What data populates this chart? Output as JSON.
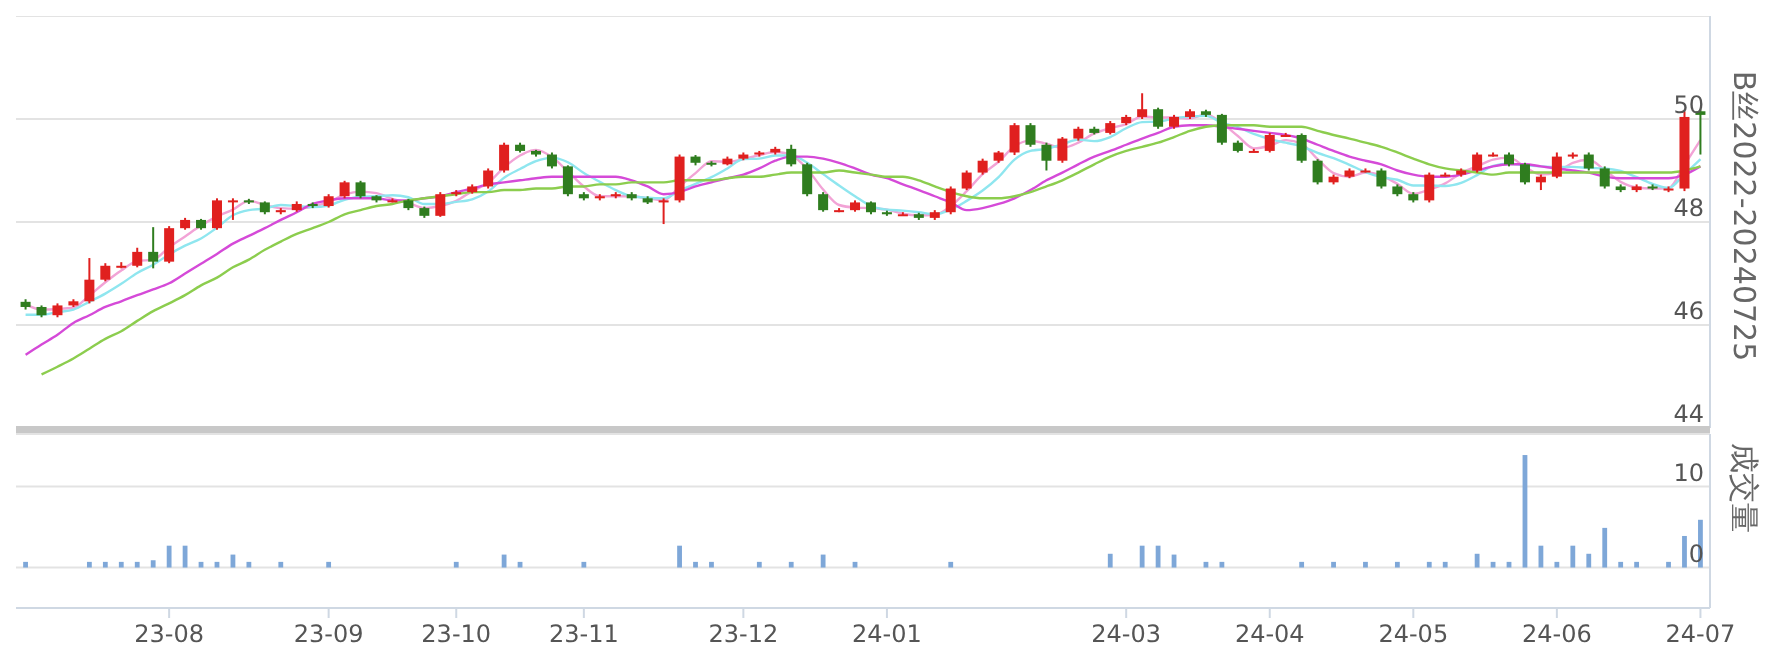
{
  "chart_data": [
    {
      "type": "candlestick",
      "ylabel": "B丝2022-20240725",
      "grid": "y",
      "tick_labels": "y",
      "ylim": [
        44,
        52
      ],
      "yticks": [
        44,
        46,
        48,
        50
      ],
      "categories": [
        null,
        null,
        null,
        null,
        null,
        null,
        null,
        null,
        null,
        null,
        null,
        null,
        null,
        null,
        null,
        null,
        null,
        null,
        null,
        null,
        null,
        null,
        null,
        null,
        null,
        null,
        null,
        null,
        null,
        null,
        null,
        null,
        null,
        null,
        null,
        null,
        null,
        null,
        null,
        null,
        null,
        null,
        null,
        null,
        null,
        null,
        null,
        null,
        null,
        null,
        null,
        null,
        null,
        null,
        null,
        null,
        null,
        null,
        null,
        null,
        null,
        null,
        null,
        null,
        null,
        null,
        null,
        null,
        null,
        null,
        null,
        null,
        null,
        null,
        null,
        null,
        null,
        null,
        null,
        null,
        null,
        null,
        null,
        null,
        null,
        null,
        null,
        null,
        null,
        null,
        null,
        null,
        null,
        null,
        null,
        null,
        null,
        null,
        null,
        null,
        null,
        null,
        null,
        null,
        null,
        null
      ],
      "ohlc": [
        [
          46.45,
          46.5,
          46.3,
          46.35
        ],
        [
          46.35,
          46.38,
          46.15,
          46.19
        ],
        [
          46.19,
          46.42,
          46.15,
          46.38
        ],
        [
          46.38,
          46.5,
          46.35,
          46.46
        ],
        [
          46.46,
          47.3,
          46.42,
          46.88
        ],
        [
          46.88,
          47.2,
          46.85,
          47.15
        ],
        [
          47.15,
          47.22,
          47.1,
          47.15
        ],
        [
          47.15,
          47.5,
          47.12,
          47.42
        ],
        [
          47.42,
          47.9,
          47.1,
          47.23
        ],
        [
          47.23,
          47.92,
          47.2,
          47.88
        ],
        [
          47.88,
          48.08,
          47.85,
          48.04
        ],
        [
          48.04,
          48.06,
          47.85,
          47.88
        ],
        [
          47.88,
          48.46,
          47.85,
          48.42
        ],
        [
          48.42,
          48.46,
          48.04,
          48.42
        ],
        [
          48.42,
          48.45,
          48.35,
          48.38
        ],
        [
          48.38,
          48.4,
          48.15,
          48.19
        ],
        [
          48.19,
          48.27,
          48.15,
          48.23
        ],
        [
          48.23,
          48.4,
          48.2,
          48.35
        ],
        [
          48.35,
          48.38,
          48.27,
          48.31
        ],
        [
          48.31,
          48.54,
          48.28,
          48.5
        ],
        [
          48.5,
          48.8,
          48.46,
          48.77
        ],
        [
          48.77,
          48.8,
          48.46,
          48.5
        ],
        [
          48.5,
          48.52,
          48.38,
          48.42
        ],
        [
          48.42,
          48.46,
          48.38,
          48.42
        ],
        [
          48.42,
          48.45,
          48.23,
          48.27
        ],
        [
          48.27,
          48.3,
          48.08,
          48.12
        ],
        [
          48.12,
          48.58,
          48.1,
          48.54
        ],
        [
          48.54,
          48.62,
          48.5,
          48.58
        ],
        [
          48.58,
          48.73,
          48.55,
          48.69
        ],
        [
          48.69,
          49.04,
          48.65,
          49.0
        ],
        [
          49.0,
          49.54,
          48.96,
          49.5
        ],
        [
          49.5,
          49.54,
          49.35,
          49.38
        ],
        [
          49.38,
          49.4,
          49.27,
          49.31
        ],
        [
          49.31,
          49.35,
          49.04,
          49.08
        ],
        [
          49.08,
          49.1,
          48.5,
          48.54
        ],
        [
          48.54,
          48.58,
          48.42,
          48.46
        ],
        [
          48.46,
          48.54,
          48.42,
          48.5
        ],
        [
          48.5,
          48.58,
          48.46,
          48.54
        ],
        [
          48.54,
          48.58,
          48.42,
          48.46
        ],
        [
          48.46,
          48.5,
          48.35,
          48.38
        ],
        [
          48.38,
          48.46,
          47.96,
          48.42
        ],
        [
          48.42,
          49.31,
          48.38,
          49.27
        ],
        [
          49.27,
          49.3,
          49.1,
          49.15
        ],
        [
          49.15,
          49.18,
          49.08,
          49.12
        ],
        [
          49.12,
          49.27,
          49.1,
          49.23
        ],
        [
          49.23,
          49.35,
          49.2,
          49.31
        ],
        [
          49.31,
          49.38,
          49.27,
          49.35
        ],
        [
          49.35,
          49.46,
          49.31,
          49.42
        ],
        [
          49.42,
          49.5,
          49.08,
          49.12
        ],
        [
          49.12,
          49.15,
          48.5,
          48.54
        ],
        [
          48.54,
          48.58,
          48.2,
          48.23
        ],
        [
          48.23,
          48.27,
          48.19,
          48.23
        ],
        [
          48.23,
          48.42,
          48.2,
          48.38
        ],
        [
          48.38,
          48.4,
          48.15,
          48.19
        ],
        [
          48.19,
          48.22,
          48.12,
          48.15
        ],
        [
          48.15,
          48.19,
          48.12,
          48.15
        ],
        [
          48.15,
          48.18,
          48.04,
          48.08
        ],
        [
          48.08,
          48.23,
          48.04,
          48.19
        ],
        [
          48.19,
          48.69,
          48.15,
          48.65
        ],
        [
          48.65,
          49.0,
          48.62,
          48.96
        ],
        [
          48.96,
          49.23,
          48.92,
          49.19
        ],
        [
          49.19,
          49.38,
          49.15,
          49.35
        ],
        [
          49.35,
          49.92,
          49.3,
          49.88
        ],
        [
          49.88,
          49.92,
          49.46,
          49.5
        ],
        [
          49.5,
          49.54,
          49.0,
          49.19
        ],
        [
          49.19,
          49.65,
          49.15,
          49.62
        ],
        [
          49.62,
          49.85,
          49.58,
          49.81
        ],
        [
          49.81,
          49.85,
          49.7,
          49.73
        ],
        [
          49.73,
          49.96,
          49.7,
          49.92
        ],
        [
          49.92,
          50.08,
          49.88,
          50.04
        ],
        [
          50.04,
          50.5,
          50.0,
          50.19
        ],
        [
          50.19,
          50.22,
          49.81,
          49.85
        ],
        [
          49.85,
          50.08,
          49.81,
          50.04
        ],
        [
          50.04,
          50.19,
          50.0,
          50.15
        ],
        [
          50.15,
          50.18,
          50.04,
          50.08
        ],
        [
          50.08,
          50.1,
          49.5,
          49.54
        ],
        [
          49.54,
          49.58,
          49.35,
          49.38
        ],
        [
          49.38,
          49.42,
          49.35,
          49.38
        ],
        [
          49.38,
          49.73,
          49.35,
          49.69
        ],
        [
          49.69,
          49.73,
          49.65,
          49.69
        ],
        [
          49.69,
          49.72,
          49.15,
          49.19
        ],
        [
          49.19,
          49.22,
          48.73,
          48.77
        ],
        [
          48.77,
          48.92,
          48.73,
          48.88
        ],
        [
          48.88,
          49.04,
          48.85,
          49.0
        ],
        [
          49.0,
          49.04,
          48.96,
          49.0
        ],
        [
          49.0,
          49.04,
          48.65,
          48.69
        ],
        [
          48.69,
          48.73,
          48.5,
          48.54
        ],
        [
          48.54,
          48.58,
          48.38,
          48.42
        ],
        [
          48.42,
          48.96,
          48.38,
          48.92
        ],
        [
          48.92,
          48.96,
          48.88,
          48.92
        ],
        [
          48.92,
          49.04,
          48.88,
          49.0
        ],
        [
          49.0,
          49.35,
          48.96,
          49.31
        ],
        [
          49.31,
          49.35,
          49.27,
          49.31
        ],
        [
          49.31,
          49.35,
          49.08,
          49.12
        ],
        [
          49.12,
          49.15,
          48.73,
          48.77
        ],
        [
          48.77,
          48.92,
          48.62,
          48.88
        ],
        [
          48.88,
          49.35,
          48.85,
          49.27
        ],
        [
          49.27,
          49.35,
          49.23,
          49.31
        ],
        [
          49.31,
          49.35,
          49.0,
          49.04
        ],
        [
          49.04,
          49.08,
          48.65,
          48.69
        ],
        [
          48.69,
          48.73,
          48.58,
          48.62
        ],
        [
          48.62,
          48.73,
          48.58,
          48.69
        ],
        [
          48.69,
          48.73,
          48.62,
          48.65
        ],
        [
          48.65,
          48.69,
          48.58,
          48.65
        ],
        [
          48.65,
          50.15,
          48.6,
          50.04
        ],
        [
          50.15,
          50.19,
          49.31,
          50.08
        ]
      ],
      "colors": [
        "#2f7d1f",
        "#2f7d1f",
        "#e0201f",
        "#e0201f",
        "#e0201f",
        "#e0201f",
        "#e0201f",
        "#e0201f",
        "#2f7d1f",
        "#e0201f",
        "#e0201f",
        "#2f7d1f",
        "#e0201f",
        "#e0201f",
        "#2f7d1f",
        "#2f7d1f",
        "#e0201f",
        "#e0201f",
        "#2f7d1f",
        "#e0201f",
        "#e0201f",
        "#2f7d1f",
        "#2f7d1f",
        "#e0201f",
        "#2f7d1f",
        "#2f7d1f",
        "#e0201f",
        "#e0201f",
        "#e0201f",
        "#e0201f",
        "#e0201f",
        "#2f7d1f",
        "#2f7d1f",
        "#2f7d1f",
        "#2f7d1f",
        "#2f7d1f",
        "#e0201f",
        "#e0201f",
        "#2f7d1f",
        "#2f7d1f",
        "#e0201f",
        "#e0201f",
        "#2f7d1f",
        "#2f7d1f",
        "#e0201f",
        "#e0201f",
        "#e0201f",
        "#e0201f",
        "#2f7d1f",
        "#2f7d1f",
        "#2f7d1f",
        "#e0201f",
        "#e0201f",
        "#2f7d1f",
        "#2f7d1f",
        "#e0201f",
        "#2f7d1f",
        "#e0201f",
        "#e0201f",
        "#e0201f",
        "#e0201f",
        "#e0201f",
        "#e0201f",
        "#2f7d1f",
        "#2f7d1f",
        "#e0201f",
        "#e0201f",
        "#2f7d1f",
        "#e0201f",
        "#e0201f",
        "#e0201f",
        "#2f7d1f",
        "#e0201f",
        "#e0201f",
        "#2f7d1f",
        "#2f7d1f",
        "#2f7d1f",
        "#e0201f",
        "#e0201f",
        "#e0201f",
        "#2f7d1f",
        "#2f7d1f",
        "#e0201f",
        "#e0201f",
        "#e0201f",
        "#2f7d1f",
        "#2f7d1f",
        "#2f7d1f",
        "#e0201f",
        "#e0201f",
        "#e0201f",
        "#e0201f",
        "#e0201f",
        "#2f7d1f",
        "#2f7d1f",
        "#e0201f",
        "#e0201f",
        "#e0201f",
        "#2f7d1f",
        "#2f7d1f",
        "#2f7d1f",
        "#e0201f",
        "#2f7d1f",
        "#e0201f",
        "#e0201f",
        "#2f7d1f"
      ],
      "series": [
        {
          "type": "line",
          "color": "#f2a3d6",
          "values": [
            46.4,
            46.3,
            46.31,
            46.34,
            46.57,
            46.83,
            47.06,
            47.24,
            47.27,
            47.51,
            47.72,
            47.93,
            48.11,
            48.24,
            48.41,
            48.33,
            48.27,
            48.26,
            48.3,
            48.39,
            48.53,
            48.59,
            48.56,
            48.45,
            48.37,
            48.27,
            48.31,
            48.41,
            48.6,
            48.76,
            49.06,
            49.29,
            49.4,
            49.26,
            48.98,
            48.69,
            48.5,
            48.5,
            48.5,
            48.46,
            48.42,
            48.69,
            48.95,
            49.18,
            49.17,
            49.22,
            49.3,
            49.36,
            49.3,
            49.03,
            48.63,
            48.33,
            48.28,
            48.27,
            48.24,
            48.16,
            48.13,
            48.14,
            48.31,
            48.6,
            48.93,
            49.17,
            49.47,
            49.58,
            49.52,
            49.44,
            49.54,
            49.72,
            49.82,
            49.9,
            50.05,
            50.03,
            50.03,
            50.01,
            50.09,
            49.92,
            49.67,
            49.43,
            49.48,
            49.59,
            49.52,
            49.22,
            48.95,
            48.88,
            48.96,
            48.9,
            48.74,
            48.55,
            48.63,
            48.75,
            48.95,
            49.08,
            49.21,
            49.25,
            49.07,
            48.92,
            48.97,
            49.15,
            49.21,
            49.01,
            48.78,
            48.67,
            48.65,
            48.66,
            49.11,
            49.59
          ]
        },
        {
          "type": "line",
          "color": "#8fe6ef",
          "values": [
            46.2,
            46.2,
            46.25,
            46.3,
            46.45,
            46.61,
            46.8,
            47.01,
            47.17,
            47.37,
            47.54,
            47.68,
            47.89,
            48.13,
            48.23,
            48.26,
            48.33,
            48.31,
            48.29,
            48.32,
            48.43,
            48.49,
            48.5,
            48.52,
            48.48,
            48.35,
            48.35,
            48.39,
            48.44,
            48.59,
            48.86,
            49.03,
            49.18,
            49.25,
            49.16,
            48.95,
            48.78,
            48.62,
            48.5,
            48.47,
            48.46,
            48.61,
            48.74,
            48.87,
            49.04,
            49.22,
            49.23,
            49.29,
            49.29,
            49.15,
            48.93,
            48.71,
            48.5,
            48.31,
            48.24,
            48.22,
            48.19,
            48.15,
            48.24,
            48.41,
            48.61,
            48.87,
            49.21,
            49.38,
            49.42,
            49.51,
            49.6,
            49.57,
            49.65,
            49.82,
            49.94,
            49.95,
            50.01,
            50.05,
            50.06,
            49.93,
            49.84,
            49.71,
            49.61,
            49.54,
            49.47,
            49.34,
            49.24,
            49.11,
            48.97,
            48.87,
            48.82,
            48.71,
            48.71,
            48.7,
            48.76,
            48.91,
            49.09,
            49.13,
            49.1,
            49.08,
            49.07,
            49.07,
            49.05,
            49.04,
            48.99,
            48.87,
            48.74,
            48.66,
            48.93,
            49.22
          ]
        },
        {
          "type": "line",
          "color": "#d54ad8",
          "values": [
            45.42,
            45.62,
            45.81,
            46.04,
            46.19,
            46.35,
            46.46,
            46.58,
            46.69,
            46.81,
            47.0,
            47.19,
            47.38,
            47.58,
            47.73,
            47.88,
            48.04,
            48.19,
            48.35,
            48.42,
            48.46,
            48.46,
            48.46,
            48.42,
            48.42,
            48.46,
            48.5,
            48.58,
            48.65,
            48.73,
            48.77,
            48.81,
            48.85,
            48.88,
            48.88,
            48.88,
            48.88,
            48.88,
            48.81,
            48.69,
            48.54,
            48.58,
            48.69,
            48.77,
            48.85,
            48.92,
            49.04,
            49.19,
            49.27,
            49.27,
            49.23,
            49.15,
            49.04,
            48.92,
            48.85,
            48.73,
            48.62,
            48.5,
            48.38,
            48.23,
            48.27,
            48.35,
            48.46,
            48.62,
            48.81,
            48.96,
            49.12,
            49.27,
            49.38,
            49.5,
            49.62,
            49.73,
            49.85,
            49.88,
            49.88,
            49.85,
            49.81,
            49.77,
            49.73,
            49.69,
            49.62,
            49.5,
            49.38,
            49.27,
            49.19,
            49.12,
            49.0,
            48.92,
            48.88,
            48.88,
            48.92,
            49.0,
            49.08,
            49.12,
            49.12,
            49.08,
            49.04,
            49.0,
            48.96,
            48.88,
            48.85,
            48.85,
            48.85,
            48.85,
            48.92,
            49.08
          ]
        },
        {
          "type": "line",
          "color": "#8ccd4e",
          "values": [
            null,
            45.04,
            45.19,
            45.35,
            45.54,
            45.73,
            45.88,
            46.08,
            46.27,
            46.42,
            46.58,
            46.77,
            46.92,
            47.12,
            47.27,
            47.46,
            47.62,
            47.77,
            47.88,
            48.0,
            48.15,
            48.23,
            48.31,
            48.35,
            48.42,
            48.46,
            48.5,
            48.54,
            48.58,
            48.58,
            48.62,
            48.62,
            48.65,
            48.65,
            48.69,
            48.69,
            48.73,
            48.73,
            48.77,
            48.77,
            48.77,
            48.81,
            48.81,
            48.81,
            48.85,
            48.88,
            48.88,
            48.92,
            48.96,
            48.96,
            48.96,
            49.0,
            48.96,
            48.92,
            48.88,
            48.88,
            48.81,
            48.69,
            48.58,
            48.5,
            48.46,
            48.46,
            48.5,
            48.58,
            48.69,
            48.81,
            48.96,
            49.12,
            49.27,
            49.38,
            49.46,
            49.54,
            49.65,
            49.77,
            49.85,
            49.88,
            49.88,
            49.88,
            49.85,
            49.85,
            49.85,
            49.77,
            49.69,
            49.62,
            49.54,
            49.46,
            49.35,
            49.23,
            49.12,
            49.04,
            49.0,
            48.96,
            48.92,
            48.96,
            48.96,
            48.96,
            48.96,
            48.96,
            48.96,
            48.96,
            48.96,
            48.96,
            48.96,
            48.96,
            49.0,
            49.08
          ]
        }
      ]
    },
    {
      "type": "bar",
      "ylabel": "成交量",
      "grid": "y",
      "ylim": [
        -5,
        16.5
      ],
      "yticks": [
        0,
        10
      ],
      "color": "#7ea7d8",
      "categories": [
        null,
        null,
        null,
        null,
        null,
        null,
        null,
        null,
        null,
        "23-08",
        null,
        null,
        null,
        null,
        null,
        null,
        null,
        null,
        null,
        "23-09",
        null,
        null,
        null,
        null,
        null,
        null,
        null,
        "23-10",
        null,
        null,
        null,
        null,
        null,
        null,
        null,
        "23-11",
        null,
        null,
        null,
        null,
        null,
        null,
        null,
        null,
        null,
        "23-12",
        null,
        null,
        null,
        null,
        null,
        null,
        null,
        null,
        "24-01",
        null,
        null,
        null,
        null,
        null,
        null,
        null,
        null,
        null,
        null,
        null,
        null,
        null,
        null,
        "24-03",
        null,
        null,
        null,
        null,
        null,
        null,
        null,
        null,
        "24-04",
        null,
        null,
        null,
        null,
        null,
        null,
        null,
        null,
        "24-05",
        null,
        null,
        null,
        null,
        null,
        null,
        null,
        null,
        "24-06",
        null,
        null,
        null,
        null,
        null,
        null,
        null,
        null,
        "24-07"
      ],
      "values": [
        0.7,
        null,
        null,
        null,
        0.7,
        0.7,
        0.7,
        0.7,
        0.9,
        2.7,
        2.7,
        0.7,
        0.7,
        1.6,
        0.7,
        null,
        0.7,
        null,
        null,
        0.7,
        null,
        null,
        null,
        null,
        null,
        null,
        null,
        0.7,
        null,
        null,
        1.6,
        0.7,
        null,
        null,
        null,
        0.7,
        null,
        null,
        null,
        null,
        null,
        2.7,
        0.7,
        0.7,
        null,
        null,
        0.7,
        null,
        0.7,
        null,
        1.6,
        null,
        0.7,
        null,
        null,
        null,
        null,
        null,
        0.7,
        null,
        null,
        null,
        null,
        null,
        null,
        null,
        null,
        null,
        1.7,
        null,
        2.7,
        2.7,
        1.6,
        null,
        0.7,
        0.7,
        null,
        null,
        null,
        null,
        0.7,
        null,
        0.7,
        null,
        0.7,
        null,
        0.7,
        null,
        0.7,
        0.7,
        null,
        1.7,
        0.7,
        0.7,
        13.9,
        2.7,
        0.7,
        2.7,
        1.7,
        4.9,
        0.7,
        0.7,
        null,
        0.7,
        3.9,
        5.9
      ]
    }
  ]
}
